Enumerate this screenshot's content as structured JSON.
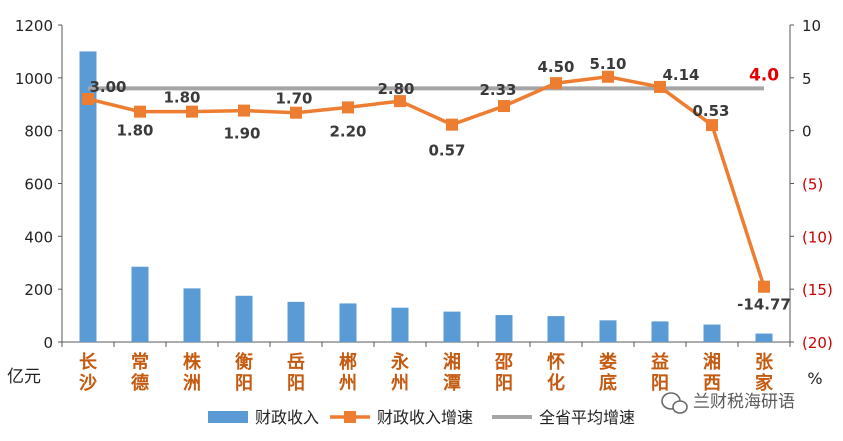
{
  "chart_data": {
    "type": "bar+line",
    "categories": [
      [
        "长",
        "沙"
      ],
      [
        "常",
        "德"
      ],
      [
        "株",
        "洲"
      ],
      [
        "衡",
        "阳"
      ],
      [
        "岳",
        "阳"
      ],
      [
        "郴",
        "州"
      ],
      [
        "永",
        "州"
      ],
      [
        "湘",
        "潭"
      ],
      [
        "邵",
        "阳"
      ],
      [
        "怀",
        "化"
      ],
      [
        "娄",
        "底"
      ],
      [
        "益",
        "阳"
      ],
      [
        "湘",
        "西"
      ],
      [
        "张",
        "家"
      ]
    ],
    "series": [
      {
        "name": "财政收入",
        "chart": "bar",
        "axis": "left",
        "color": "#5b9bd5",
        "values": [
          1100,
          285,
          203,
          175,
          152,
          146,
          130,
          115,
          102,
          98,
          82,
          78,
          66,
          32
        ]
      },
      {
        "name": "财政收入增速",
        "chart": "line",
        "axis": "right",
        "color": "#ed7d31",
        "values": [
          3.0,
          1.8,
          1.8,
          1.9,
          1.7,
          2.2,
          2.8,
          0.57,
          2.33,
          4.5,
          5.1,
          4.14,
          0.53,
          -14.77
        ],
        "labels": [
          "3.00",
          "1.80",
          "1.80",
          "1.90",
          "1.70",
          "2.20",
          "2.80",
          "0.57",
          "2.33",
          "4.50",
          "5.10",
          "4.14",
          "0.53",
          "-14.77"
        ]
      },
      {
        "name": "全省平均增速",
        "chart": "line",
        "axis": "right",
        "color": "#a5a5a5",
        "value": 4.0,
        "label": "4.0"
      }
    ],
    "y_left": {
      "unit": "亿元",
      "min": 0,
      "max": 1200,
      "ticks": [
        0,
        200,
        400,
        600,
        800,
        1000,
        1200
      ],
      "tick_labels": [
        "0",
        "200",
        "400",
        "600",
        "800",
        "1000",
        "1200"
      ]
    },
    "y_right": {
      "unit": "%",
      "min": -20,
      "max": 10,
      "ticks": [
        -20,
        -15,
        -10,
        -5,
        0,
        5,
        10
      ],
      "tick_labels": [
        "(20)",
        "(15)",
        "(10)",
        "(5)",
        "0",
        "5",
        "10"
      ],
      "negative_color": "#cc0000"
    },
    "grid": false,
    "legend_position": "bottom"
  },
  "watermark": "兰财税海研语"
}
